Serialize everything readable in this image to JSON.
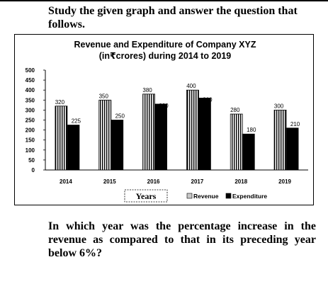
{
  "intro_text": "Study the given graph and answer the question that follows.",
  "question_text": "In which year was the percentage increase in the revenue as compared to that in its preceding year below 6%?",
  "chart_data": {
    "type": "bar",
    "title_line1": "Revenue and Expenditure of Company XYZ",
    "title_line2": "(in₹crores) during 2014 to 2019",
    "xlabel": "Years",
    "ylabel": "",
    "ylim": [
      0,
      500
    ],
    "y_ticks": [
      0,
      50,
      100,
      150,
      200,
      250,
      300,
      350,
      400,
      450,
      500
    ],
    "categories": [
      "2014",
      "2015",
      "2016",
      "2017",
      "2018",
      "2019"
    ],
    "series": [
      {
        "name": "Revenue",
        "values": [
          320,
          350,
          380,
          400,
          280,
          300
        ],
        "pattern": "vertical-stripes",
        "color": "#000000"
      },
      {
        "name": "Expenditure",
        "values": [
          225,
          250,
          330,
          360,
          180,
          210
        ],
        "pattern": "solid",
        "color": "#000000"
      }
    ],
    "data_labels": true,
    "legend_position": "bottom-right",
    "grid": false
  }
}
